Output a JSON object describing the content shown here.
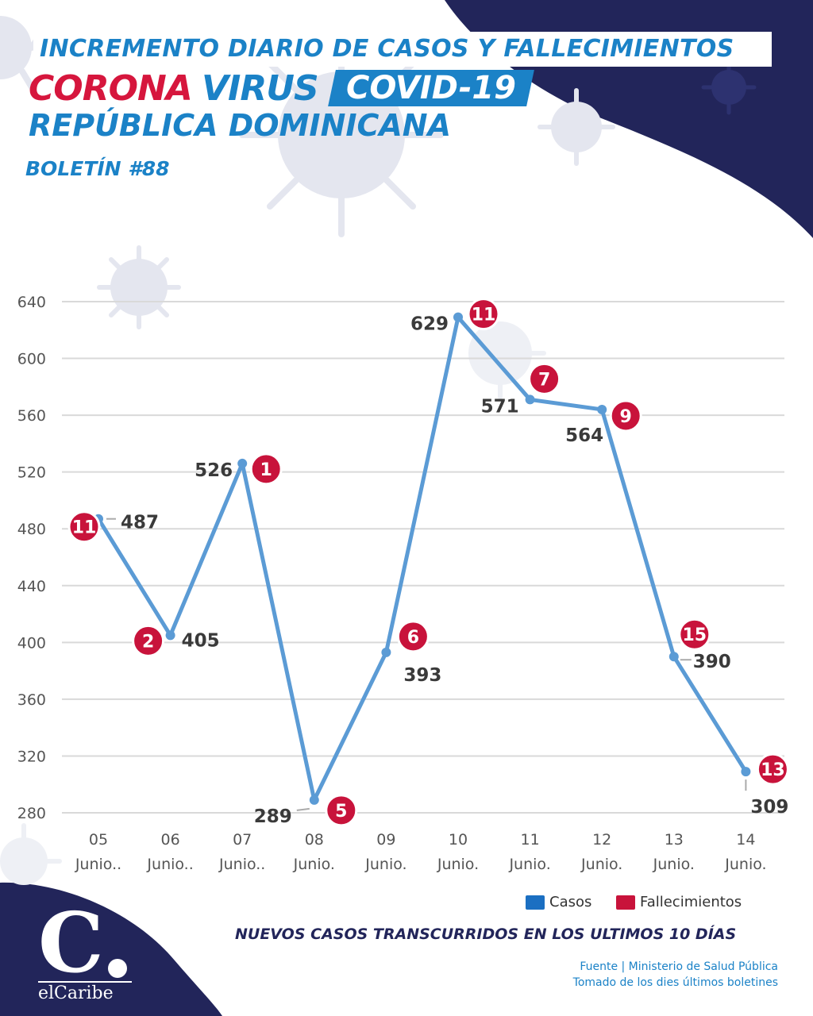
{
  "header": {
    "title": "INCREMENTO DIARIO DE CASOS Y FALLECIMIENTOS",
    "corona": "CORONA",
    "virus": "VIRUS",
    "covid": "COVID-19",
    "country": "REPÚBLICA DOMINICANA",
    "bulletin": "BOLETÍN #88"
  },
  "colors": {
    "cases": "#5b9bd5",
    "deaths": "#c8133b",
    "brand_blue": "#1b82c7",
    "navy": "#22255a",
    "grid": "#d9d9d9"
  },
  "chart_data": {
    "type": "line",
    "title": "",
    "xlabel": "",
    "ylabel": "",
    "ylim": [
      280,
      640
    ],
    "yticks": [
      280,
      320,
      360,
      400,
      440,
      480,
      520,
      560,
      600,
      640
    ],
    "categories": [
      [
        "05",
        "Junio.."
      ],
      [
        "06",
        "Junio.."
      ],
      [
        "07",
        "Junio.."
      ],
      [
        "08",
        "Junio."
      ],
      [
        "09",
        "Junio."
      ],
      [
        "10",
        "Junio."
      ],
      [
        "11",
        "Junio."
      ],
      [
        "12",
        "Junio."
      ],
      [
        "13",
        "Junio."
      ],
      [
        "14",
        "Junio."
      ]
    ],
    "series": [
      {
        "name": "Casos",
        "values": [
          487,
          405,
          526,
          289,
          393,
          629,
          571,
          564,
          390,
          309
        ]
      },
      {
        "name": "Fallecimientos",
        "values": [
          11,
          2,
          1,
          5,
          6,
          11,
          7,
          9,
          15,
          13
        ]
      }
    ],
    "grid": true,
    "legend": "bottom-right"
  },
  "legend": {
    "cases": "Casos",
    "deaths": "Fallecimientos"
  },
  "footer": {
    "subtitle": "NUEVOS CASOS TRANSCURRIDOS EN LOS ULTIMOS 10 DÍAS",
    "source": "Fuente | Ministerio de Salud Pública",
    "note": "Tomado de  los dies últimos boletines",
    "logo_letter": "C",
    "logo_word": "elCaribe"
  }
}
